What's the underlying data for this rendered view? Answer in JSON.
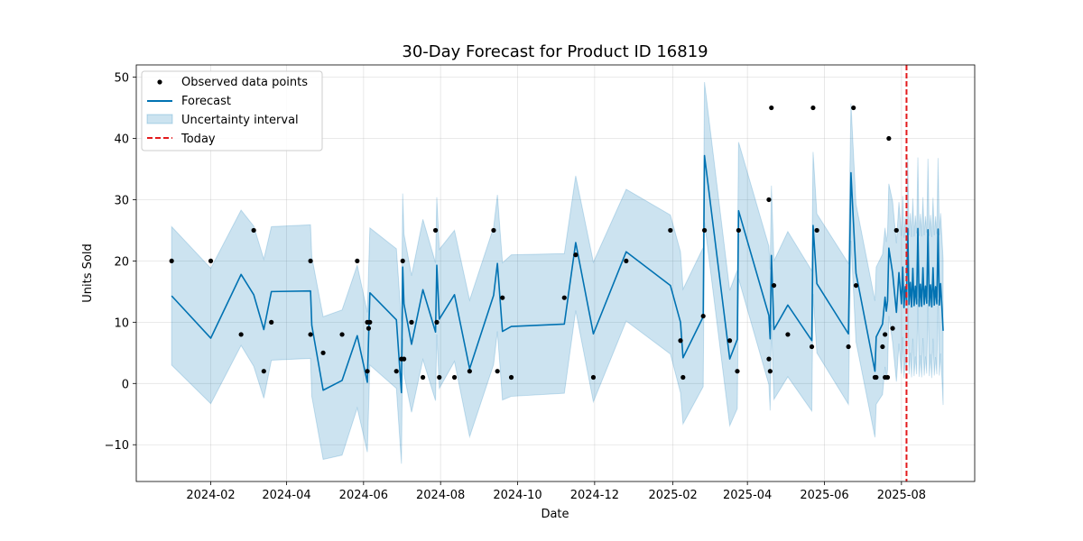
{
  "chart_data": {
    "type": "line",
    "title": "30-Day Forecast for Product ID 16819",
    "xlabel": "Date",
    "ylabel": "Units Sold",
    "xlim": [
      "2023-12-04",
      "2025-09-28"
    ],
    "ylim": [
      -16,
      52
    ],
    "x_ticks": [
      "2024-02-01",
      "2024-04-01",
      "2024-06-01",
      "2024-08-01",
      "2024-10-01",
      "2024-12-01",
      "2025-02-01",
      "2025-04-01",
      "2025-06-01",
      "2025-08-01"
    ],
    "x_tick_labels": [
      "2024-02",
      "2024-04",
      "2024-06",
      "2024-08",
      "2024-10",
      "2024-12",
      "2025-02",
      "2025-04",
      "2025-06",
      "2025-08"
    ],
    "y_ticks": [
      -10,
      0,
      10,
      20,
      30,
      40,
      50
    ],
    "y_tick_labels": [
      "−10",
      "0",
      "10",
      "20",
      "30",
      "40",
      "50"
    ],
    "grid": true,
    "legend_position": "top-left",
    "legend": [
      "Observed data points",
      "Forecast",
      "Uncertainty interval",
      "Today"
    ],
    "colors": {
      "observed": "#000000",
      "forecast": "#0072B2",
      "interval": "#0072B2",
      "today": "#e31a1c"
    },
    "today": "2025-08-05",
    "observed": [
      {
        "x": "2024-01-01",
        "y": 20
      },
      {
        "x": "2024-02-01",
        "y": 20
      },
      {
        "x": "2024-02-25",
        "y": 8
      },
      {
        "x": "2024-03-06",
        "y": 25
      },
      {
        "x": "2024-03-14",
        "y": 2
      },
      {
        "x": "2024-03-20",
        "y": 10
      },
      {
        "x": "2024-04-20",
        "y": 20
      },
      {
        "x": "2024-04-20",
        "y": 8
      },
      {
        "x": "2024-04-30",
        "y": 5
      },
      {
        "x": "2024-05-15",
        "y": 8
      },
      {
        "x": "2024-05-27",
        "y": 20
      },
      {
        "x": "2024-06-04",
        "y": 2
      },
      {
        "x": "2024-06-04",
        "y": 10
      },
      {
        "x": "2024-06-05",
        "y": 9
      },
      {
        "x": "2024-06-06",
        "y": 10
      },
      {
        "x": "2024-06-27",
        "y": 2
      },
      {
        "x": "2024-07-01",
        "y": 4
      },
      {
        "x": "2024-07-02",
        "y": 20
      },
      {
        "x": "2024-07-03",
        "y": 4
      },
      {
        "x": "2024-07-09",
        "y": 10
      },
      {
        "x": "2024-07-18",
        "y": 1
      },
      {
        "x": "2024-07-28",
        "y": 25
      },
      {
        "x": "2024-07-29",
        "y": 10
      },
      {
        "x": "2024-07-31",
        "y": 1
      },
      {
        "x": "2024-08-12",
        "y": 1
      },
      {
        "x": "2024-08-24",
        "y": 2
      },
      {
        "x": "2024-09-12",
        "y": 25
      },
      {
        "x": "2024-09-15",
        "y": 2
      },
      {
        "x": "2024-09-19",
        "y": 14
      },
      {
        "x": "2024-09-26",
        "y": 1
      },
      {
        "x": "2024-11-07",
        "y": 14
      },
      {
        "x": "2024-11-16",
        "y": 21
      },
      {
        "x": "2024-11-30",
        "y": 1
      },
      {
        "x": "2024-12-26",
        "y": 20
      },
      {
        "x": "2025-01-30",
        "y": 25
      },
      {
        "x": "2025-02-07",
        "y": 7
      },
      {
        "x": "2025-02-09",
        "y": 1
      },
      {
        "x": "2025-02-25",
        "y": 11
      },
      {
        "x": "2025-02-26",
        "y": 25
      },
      {
        "x": "2025-03-18",
        "y": 7
      },
      {
        "x": "2025-03-24",
        "y": 2
      },
      {
        "x": "2025-03-25",
        "y": 25
      },
      {
        "x": "2025-04-18",
        "y": 4
      },
      {
        "x": "2025-04-18",
        "y": 30
      },
      {
        "x": "2025-04-19",
        "y": 2
      },
      {
        "x": "2025-04-20",
        "y": 45
      },
      {
        "x": "2025-04-22",
        "y": 16
      },
      {
        "x": "2025-05-03",
        "y": 8
      },
      {
        "x": "2025-05-22",
        "y": 6
      },
      {
        "x": "2025-05-23",
        "y": 45
      },
      {
        "x": "2025-05-26",
        "y": 25
      },
      {
        "x": "2025-06-20",
        "y": 6
      },
      {
        "x": "2025-06-24",
        "y": 45
      },
      {
        "x": "2025-06-26",
        "y": 16
      },
      {
        "x": "2025-07-11",
        "y": 1
      },
      {
        "x": "2025-07-12",
        "y": 1
      },
      {
        "x": "2025-07-17",
        "y": 6
      },
      {
        "x": "2025-07-19",
        "y": 8
      },
      {
        "x": "2025-07-19",
        "y": 1
      },
      {
        "x": "2025-07-21",
        "y": 1
      },
      {
        "x": "2025-07-22",
        "y": 40
      },
      {
        "x": "2025-07-25",
        "y": 9
      },
      {
        "x": "2025-07-28",
        "y": 25
      }
    ],
    "forecast": {
      "x": [
        "2024-01-01",
        "2024-02-01",
        "2024-02-25",
        "2024-03-06",
        "2024-03-14",
        "2024-03-20",
        "2024-04-20",
        "2024-04-21",
        "2024-04-30",
        "2024-05-15",
        "2024-05-27",
        "2024-06-04",
        "2024-06-06",
        "2024-06-27",
        "2024-07-01",
        "2024-07-02",
        "2024-07-03",
        "2024-07-09",
        "2024-07-18",
        "2024-07-28",
        "2024-07-29",
        "2024-07-31",
        "2024-08-12",
        "2024-08-24",
        "2024-09-12",
        "2024-09-15",
        "2024-09-19",
        "2024-09-26",
        "2024-11-07",
        "2024-11-16",
        "2024-11-30",
        "2024-12-26",
        "2025-01-30",
        "2025-02-07",
        "2025-02-09",
        "2025-02-25",
        "2025-02-26",
        "2025-03-18",
        "2025-03-24",
        "2025-03-25",
        "2025-04-18",
        "2025-04-19",
        "2025-04-20",
        "2025-04-22",
        "2025-05-03",
        "2025-05-22",
        "2025-05-23",
        "2025-05-26",
        "2025-06-20",
        "2025-06-22",
        "2025-06-26",
        "2025-07-11",
        "2025-07-12",
        "2025-07-17",
        "2025-07-19",
        "2025-07-20",
        "2025-07-21",
        "2025-07-22",
        "2025-07-25",
        "2025-07-28",
        "2025-07-30",
        "2025-08-01",
        "2025-08-02",
        "2025-08-03",
        "2025-08-04",
        "2025-08-05",
        "2025-08-06",
        "2025-08-07",
        "2025-08-08",
        "2025-08-09",
        "2025-08-10",
        "2025-08-11",
        "2025-08-12",
        "2025-08-13",
        "2025-08-14",
        "2025-08-15",
        "2025-08-16",
        "2025-08-17",
        "2025-08-18",
        "2025-08-19",
        "2025-08-20",
        "2025-08-21",
        "2025-08-22",
        "2025-08-23",
        "2025-08-24",
        "2025-08-25",
        "2025-08-26",
        "2025-08-27",
        "2025-08-28",
        "2025-08-29",
        "2025-08-30",
        "2025-08-31",
        "2025-09-01",
        "2025-09-02",
        "2025-09-03"
      ],
      "yhat": [
        14.3,
        7.4,
        17.8,
        14.5,
        8.8,
        15.0,
        15.1,
        9.5,
        -1.1,
        0.5,
        7.8,
        0.2,
        14.8,
        10.4,
        -1.5,
        19.0,
        13.0,
        6.4,
        15.3,
        8.4,
        19.3,
        10.5,
        14.5,
        2.4,
        14.4,
        19.6,
        8.5,
        9.3,
        9.7,
        23.0,
        8.1,
        21.5,
        16.0,
        10.0,
        4.2,
        10.9,
        37.2,
        4.0,
        7.2,
        28.2,
        11.1,
        7.3,
        20.9,
        8.8,
        12.8,
        7.0,
        25.8,
        16.3,
        8.1,
        34.4,
        18.0,
        2.0,
        7.6,
        9.7,
        14.1,
        11.8,
        13.5,
        22.1,
        18.0,
        11.6,
        18.1,
        13.0,
        19.0,
        12.4,
        15.8,
        13.3,
        25.3,
        12.9,
        16.5,
        12.5,
        18.8,
        12.7,
        15.9,
        13.0,
        25.3,
        12.6,
        16.2,
        12.6,
        18.9,
        12.9,
        15.9,
        13.1,
        25.1,
        12.7,
        16.1,
        12.5,
        18.9,
        12.8,
        15.8,
        13.0,
        25.2,
        12.8,
        16.3,
        12.6,
        8.6
      ],
      "yhat_upper": [
        25.6,
        18.8,
        28.3,
        25.7,
        20.3,
        25.6,
        25.9,
        20.7,
        10.9,
        12.0,
        19.3,
        11.6,
        25.4,
        22.0,
        10.1,
        31.0,
        24.4,
        17.6,
        26.8,
        19.7,
        30.4,
        21.9,
        25.0,
        13.6,
        25.5,
        30.8,
        19.7,
        21.0,
        21.2,
        33.9,
        19.8,
        31.7,
        27.5,
        21.5,
        15.4,
        22.2,
        49.2,
        15.2,
        18.5,
        39.4,
        22.4,
        18.6,
        32.3,
        20.0,
        24.8,
        18.4,
        37.8,
        27.7,
        19.6,
        45.7,
        29.3,
        13.5,
        19.0,
        21.1,
        25.4,
        23.1,
        24.7,
        32.6,
        29.7,
        22.9,
        29.6,
        24.1,
        30.6,
        23.8,
        27.2,
        24.5,
        36.8,
        24.2,
        27.8,
        23.9,
        30.2,
        24.0,
        27.4,
        24.5,
        36.9,
        24.1,
        27.7,
        24.0,
        30.4,
        24.2,
        27.3,
        24.6,
        36.7,
        24.1,
        27.5,
        23.9,
        30.3,
        24.2,
        27.3,
        24.4,
        36.8,
        24.2,
        27.8,
        24.0,
        20.2
      ],
      "yhat_lower": [
        3.0,
        -3.3,
        6.2,
        2.8,
        -2.4,
        3.8,
        4.1,
        -2.1,
        -12.4,
        -11.7,
        -4.0,
        -11.2,
        3.0,
        -0.8,
        -13.1,
        7.3,
        1.5,
        -4.7,
        3.9,
        -2.8,
        8.0,
        -0.8,
        3.6,
        -8.7,
        3.1,
        8.5,
        -2.7,
        -2.1,
        -1.6,
        11.9,
        -3.0,
        10.2,
        4.8,
        -1.5,
        -6.6,
        -0.5,
        26.3,
        -6.9,
        -4.1,
        17.1,
        -0.2,
        -4.4,
        9.6,
        -2.6,
        1.1,
        -4.5,
        14.6,
        5.0,
        -3.4,
        23.3,
        6.8,
        -8.8,
        -3.4,
        -1.8,
        2.7,
        0.4,
        2.2,
        11.0,
        6.7,
        0.3,
        6.5,
        1.6,
        7.6,
        0.9,
        4.3,
        1.9,
        13.8,
        1.5,
        5.0,
        1.0,
        7.3,
        1.2,
        4.4,
        1.5,
        13.8,
        1.1,
        4.6,
        1.0,
        7.4,
        1.3,
        4.4,
        1.6,
        13.6,
        1.2,
        4.8,
        0.9,
        7.3,
        1.3,
        4.3,
        1.5,
        13.7,
        1.3,
        4.9,
        1.1,
        -3.5
      ]
    }
  }
}
